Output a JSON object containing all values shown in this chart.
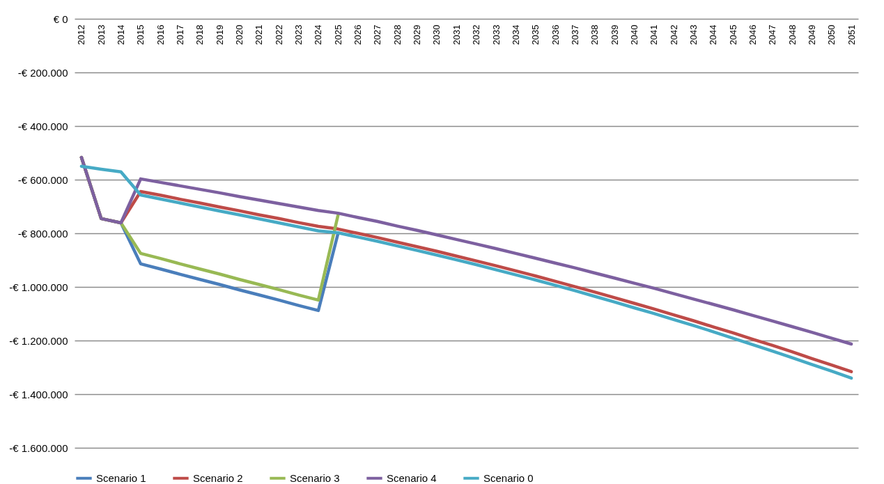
{
  "chart_data": {
    "type": "line",
    "categories": [
      "2012",
      "2013",
      "2014",
      "2015",
      "2016",
      "2017",
      "2018",
      "2019",
      "2020",
      "2021",
      "2022",
      "2023",
      "2024",
      "2025",
      "2026",
      "2027",
      "2028",
      "2029",
      "2030",
      "2031",
      "2032",
      "2033",
      "2034",
      "2035",
      "2036",
      "2037",
      "2038",
      "2039",
      "2040",
      "2041",
      "2042",
      "2043",
      "2044",
      "2045",
      "2046",
      "2047",
      "2048",
      "2049",
      "2050",
      "2051"
    ],
    "series": [
      {
        "name": "Scenario 1",
        "color": "#4a7ebb",
        "values": [
          -517000,
          -745000,
          -761000,
          -914000,
          -933000,
          -953000,
          -972000,
          -991000,
          -1011000,
          -1030000,
          -1049000,
          -1069000,
          -1088000,
          -800000,
          null,
          null,
          null,
          null,
          null,
          null,
          null,
          null,
          null,
          null,
          null,
          null,
          null,
          null,
          null,
          null,
          null,
          null,
          null,
          null,
          null,
          null,
          null,
          null,
          null,
          null
        ]
      },
      {
        "name": "Scenario 2",
        "color": "#be4b48",
        "values": [
          -517000,
          -745000,
          -761000,
          -644000,
          -658000,
          -673000,
          -687000,
          -702000,
          -716000,
          -731000,
          -745000,
          -760000,
          -774000,
          -784000,
          -800000,
          -816000,
          -833000,
          -850000,
          -867000,
          -885000,
          -903000,
          -921000,
          -940000,
          -959000,
          -979000,
          -999000,
          -1019000,
          -1040000,
          -1061000,
          -1082000,
          -1104000,
          -1126000,
          -1149000,
          -1171000,
          -1195000,
          -1218000,
          -1242000,
          -1267000,
          -1291000,
          -1316000
        ]
      },
      {
        "name": "Scenario 3",
        "color": "#98b954",
        "values": [
          -517000,
          -745000,
          -761000,
          -875000,
          -894000,
          -914000,
          -933000,
          -952000,
          -972000,
          -991000,
          -1010000,
          -1030000,
          -1049000,
          -732000,
          null,
          null,
          null,
          null,
          null,
          null,
          null,
          null,
          null,
          null,
          null,
          null,
          null,
          null,
          null,
          null,
          null,
          null,
          null,
          null,
          null,
          null,
          null,
          null,
          null,
          null
        ]
      },
      {
        "name": "Scenario 4",
        "color": "#7d60a0",
        "values": [
          -517000,
          -745000,
          -761000,
          -597000,
          -610000,
          -623000,
          -636000,
          -649000,
          -663000,
          -676000,
          -689000,
          -702000,
          -715000,
          -725000,
          -741000,
          -756000,
          -773000,
          -789000,
          -806000,
          -823000,
          -840000,
          -857000,
          -875000,
          -893000,
          -911000,
          -929000,
          -948000,
          -967000,
          -986000,
          -1005000,
          -1025000,
          -1045000,
          -1065000,
          -1085000,
          -1106000,
          -1127000,
          -1148000,
          -1169000,
          -1191000,
          -1213000
        ]
      },
      {
        "name": "Scenario 0",
        "color": "#46aac5",
        "values": [
          -550000,
          -561000,
          -571000,
          -657000,
          -672000,
          -687000,
          -702000,
          -717000,
          -731000,
          -746000,
          -761000,
          -776000,
          -791000,
          -798000,
          -814000,
          -830000,
          -847000,
          -864000,
          -881000,
          -899000,
          -917000,
          -936000,
          -955000,
          -974000,
          -994000,
          -1014000,
          -1035000,
          -1056000,
          -1078000,
          -1099000,
          -1122000,
          -1144000,
          -1167000,
          -1191000,
          -1215000,
          -1239000,
          -1264000,
          -1289000,
          -1314000,
          -1340000
        ]
      }
    ],
    "ylim": [
      -1600000,
      0
    ],
    "yticks": [
      {
        "value": 0,
        "label": "€ 0"
      },
      {
        "value": -200000,
        "label": "-€ 200.000"
      },
      {
        "value": -400000,
        "label": "-€ 400.000"
      },
      {
        "value": -600000,
        "label": "-€ 600.000"
      },
      {
        "value": -800000,
        "label": "-€ 800.000"
      },
      {
        "value": -1000000,
        "label": "-€ 1.000.000"
      },
      {
        "value": -1200000,
        "label": "-€ 1.200.000"
      },
      {
        "value": -1400000,
        "label": "-€ 1.400.000"
      },
      {
        "value": -1600000,
        "label": "-€ 1.600.000"
      }
    ],
    "grid": "y",
    "legend": "bottom"
  }
}
